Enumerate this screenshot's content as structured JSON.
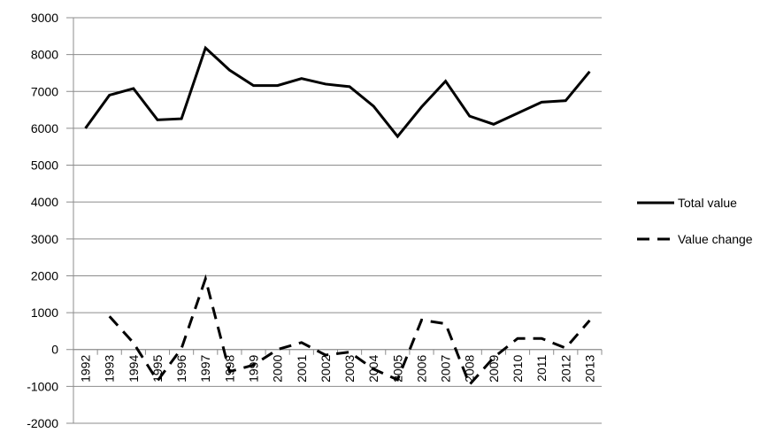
{
  "chart_data": {
    "type": "line",
    "categories": [
      "1992",
      "1993",
      "1994",
      "1995",
      "1996",
      "1997",
      "1998",
      "1999",
      "2000",
      "2001",
      "2002",
      "2003",
      "2004",
      "2005",
      "2006",
      "2007",
      "2008",
      "2009",
      "2010",
      "2011",
      "2012",
      "2013"
    ],
    "series": [
      {
        "name": "Total value",
        "color": "#000000",
        "dash": "solid",
        "values": [
          6000,
          6900,
          7080,
          6230,
          6260,
          8180,
          7580,
          7160,
          7160,
          7350,
          7200,
          7130,
          6600,
          5780,
          6580,
          7280,
          6330,
          6110,
          6410,
          6710,
          6750,
          7540
        ]
      },
      {
        "name": "Value change",
        "color": "#000000",
        "dash": "dashed",
        "values": [
          null,
          900,
          180,
          -850,
          30,
          1920,
          -600,
          -420,
          0,
          190,
          -150,
          -70,
          -530,
          -820,
          800,
          700,
          -950,
          -220,
          300,
          300,
          40,
          790
        ]
      }
    ],
    "ylim": [
      -2000,
      9000
    ],
    "yticks": [
      -2000,
      -1000,
      0,
      1000,
      2000,
      3000,
      4000,
      5000,
      6000,
      7000,
      8000,
      9000
    ],
    "grid": true,
    "legend": "right"
  }
}
